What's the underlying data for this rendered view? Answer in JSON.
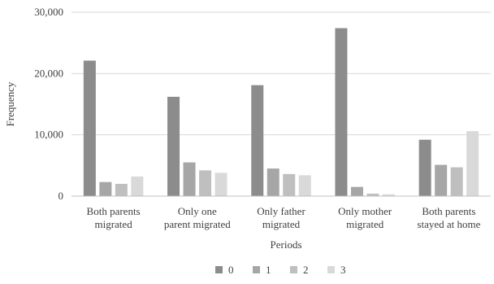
{
  "chart_data": {
    "type": "bar",
    "categories": [
      [
        "Both parents",
        "migrated"
      ],
      [
        "Only one",
        "parent migrated"
      ],
      [
        "Only father",
        "migrated"
      ],
      [
        "Only mother",
        "migrated"
      ],
      [
        "Both parents",
        "stayed at home"
      ]
    ],
    "series": [
      {
        "name": "0",
        "color": "#8c8c8c",
        "values": [
          22100,
          16200,
          18100,
          27400,
          9200
        ]
      },
      {
        "name": "1",
        "color": "#a6a6a6",
        "values": [
          2300,
          5500,
          4500,
          1500,
          5100
        ]
      },
      {
        "name": "2",
        "color": "#bfbfbf",
        "values": [
          2000,
          4200,
          3600,
          400,
          4700
        ]
      },
      {
        "name": "3",
        "color": "#d9d9d9",
        "values": [
          3200,
          3800,
          3400,
          300,
          10600
        ]
      }
    ],
    "title": "",
    "xlabel": "Periods",
    "ylabel": "Frequency",
    "ylim": [
      0,
      30000
    ],
    "yticks": [
      0,
      10000,
      20000,
      30000
    ],
    "ytick_labels": [
      "0",
      "10,000",
      "20,000",
      "30,000"
    ],
    "grid": true,
    "legend_position": "bottom"
  }
}
